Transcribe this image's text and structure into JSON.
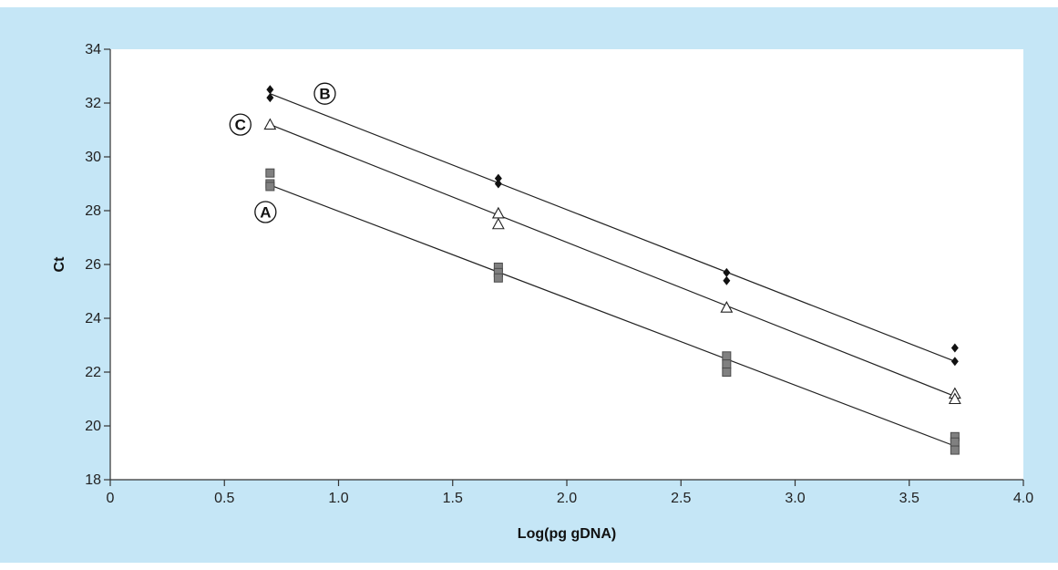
{
  "chart_data": {
    "type": "scatter",
    "title": "",
    "xlabel": "Log(pg gDNA)",
    "ylabel": "Ct",
    "xlim": [
      0,
      4.0
    ],
    "ylim": [
      18,
      34
    ],
    "x_ticks": [
      "0",
      "0.5",
      "1.0",
      "1.5",
      "2.0",
      "2.5",
      "3.0",
      "3.5",
      "4.0"
    ],
    "y_ticks": [
      "18",
      "20",
      "22",
      "24",
      "26",
      "28",
      "30",
      "32",
      "34"
    ],
    "grid": false,
    "legend": "none",
    "series": [
      {
        "name": "A",
        "marker": "square",
        "color": "#808080",
        "points": [
          [
            0.7,
            29.4
          ],
          [
            0.7,
            29.0
          ],
          [
            0.7,
            28.9
          ],
          [
            1.7,
            25.9
          ],
          [
            1.7,
            25.7
          ],
          [
            1.7,
            25.5
          ],
          [
            2.7,
            22.6
          ],
          [
            2.7,
            22.3
          ],
          [
            2.7,
            22.0
          ],
          [
            3.7,
            19.6
          ],
          [
            3.7,
            19.4
          ],
          [
            3.7,
            19.1
          ]
        ],
        "fit": [
          [
            0.7,
            28.95
          ],
          [
            3.7,
            19.25
          ]
        ]
      },
      {
        "name": "B",
        "marker": "diamond",
        "color": "#111111",
        "points": [
          [
            0.7,
            32.5
          ],
          [
            0.7,
            32.2
          ],
          [
            1.7,
            29.2
          ],
          [
            1.7,
            29.0
          ],
          [
            2.7,
            25.7
          ],
          [
            2.7,
            25.4
          ],
          [
            3.7,
            22.9
          ],
          [
            3.7,
            22.4
          ]
        ],
        "fit": [
          [
            0.7,
            32.35
          ],
          [
            3.7,
            22.4
          ]
        ]
      },
      {
        "name": "C",
        "marker": "triangle",
        "color": "#ffffff",
        "points": [
          [
            0.7,
            31.2
          ],
          [
            1.7,
            27.9
          ],
          [
            1.7,
            27.5
          ],
          [
            2.7,
            24.4
          ],
          [
            3.7,
            21.2
          ],
          [
            3.7,
            21.0
          ]
        ],
        "fit": [
          [
            0.7,
            31.2
          ],
          [
            3.7,
            21.1
          ]
        ]
      }
    ],
    "annotations": [
      {
        "text": "A",
        "x": 0.68,
        "y": 27.95
      },
      {
        "text": "B",
        "x": 0.94,
        "y": 32.35
      },
      {
        "text": "C",
        "x": 0.57,
        "y": 31.2
      }
    ]
  }
}
